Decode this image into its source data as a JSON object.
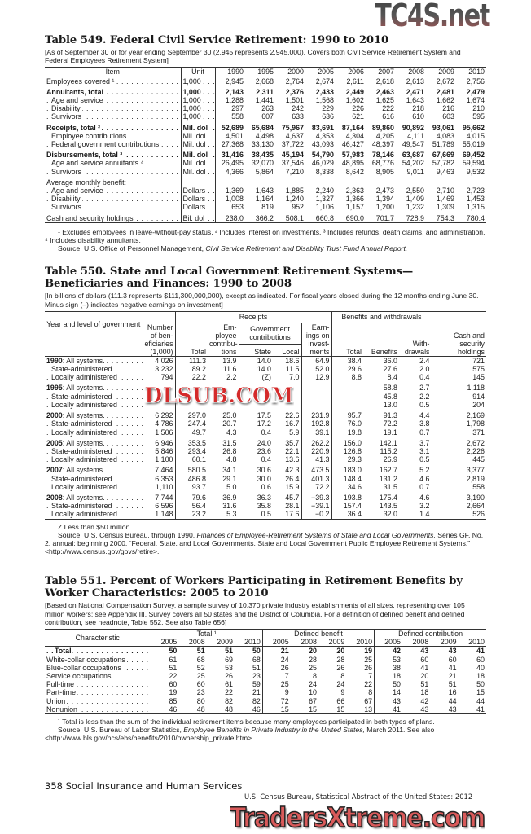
{
  "watermarks": {
    "top": "TC4S.net",
    "middle": "DLSUB.COM",
    "bottom": "TradersXtreme.com"
  },
  "t549": {
    "title": "Table 549. Federal Civil Service Retirement: 1990 to 2010",
    "headnote": "[As of September 30 or for year ending September 30 (2,945 represents 2,945,000). Covers both Civil Service Retirement System and Federal Employees Retirement System]",
    "headers": [
      "Item",
      "Unit",
      "1990",
      "1995",
      "2000",
      "2005",
      "2006",
      "2007",
      "2008",
      "2009",
      "2010"
    ],
    "groups": [
      [
        {
          "label": "Employees covered ¹",
          "unit": "1,000",
          "values": [
            "2,945",
            "2,668",
            "2,764",
            "2,674",
            "2,611",
            "2,618",
            "2,613",
            "2,672",
            "2,756"
          ]
        }
      ],
      [
        {
          "label": "Annuitants, total",
          "bold": true,
          "unit": "1,000",
          "values": [
            "2,143",
            "2,311",
            "2,376",
            "2,433",
            "2,449",
            "2,463",
            "2,471",
            "2,481",
            "2,479"
          ]
        },
        {
          "label": "Age and service",
          "level": 1,
          "unit": "1,000",
          "values": [
            "1,288",
            "1,441",
            "1,501",
            "1,568",
            "1,602",
            "1,625",
            "1,643",
            "1,662",
            "1,674"
          ]
        },
        {
          "label": "Disability",
          "level": 1,
          "unit": "1,000",
          "values": [
            "297",
            "263",
            "242",
            "229",
            "226",
            "222",
            "218",
            "216",
            "210"
          ]
        },
        {
          "label": "Survivors",
          "level": 1,
          "unit": "1,000",
          "values": [
            "558",
            "607",
            "633",
            "636",
            "621",
            "616",
            "610",
            "603",
            "595"
          ]
        }
      ],
      [
        {
          "label": "Receipts, total ²",
          "bold": true,
          "unit": "Mil. dol",
          "values": [
            "52,689",
            "65,684",
            "75,967",
            "83,691",
            "87,164",
            "89,860",
            "90,892",
            "93,061",
            "95,662"
          ]
        },
        {
          "label": "Employee contributions",
          "level": 1,
          "unit": "Mil. dol",
          "values": [
            "4,501",
            "4,498",
            "4,637",
            "4,353",
            "4,304",
            "4,205",
            "4,111",
            "4,083",
            "4,015"
          ]
        },
        {
          "label": "Federal government contributions",
          "level": 1,
          "unit": "Mil. dol",
          "values": [
            "27,368",
            "33,130",
            "37,722",
            "43,093",
            "46,427",
            "48,397",
            "49,547",
            "51,789",
            "55,019"
          ]
        }
      ],
      [
        {
          "label": "Disbursements, total ³",
          "bold": true,
          "unit": "Mil. dol",
          "values": [
            "31,416",
            "38,435",
            "45,194",
            "54,790",
            "57,983",
            "78,146",
            "63,687",
            "67,669",
            "69,452"
          ]
        },
        {
          "label": "Age and service annuitants ⁴",
          "level": 1,
          "unit": "Mil. dol",
          "values": [
            "26,495",
            "32,070",
            "37,546",
            "46,029",
            "48,895",
            "68,776",
            "54,202",
            "57,782",
            "59,594"
          ]
        },
        {
          "label": "Survivors",
          "level": 1,
          "unit": "Mil. dol",
          "values": [
            "4,366",
            "5,864",
            "7,210",
            "8,338",
            "8,642",
            "8,905",
            "9,011",
            "9,463",
            "9,532"
          ]
        }
      ],
      [
        {
          "label": "Average monthly benefit:",
          "noleader": true,
          "unit": "",
          "values": [
            "",
            "",
            "",
            "",
            "",
            "",
            "",
            "",
            ""
          ]
        },
        {
          "label": "Age and service",
          "level": 1,
          "unit": "Dollars",
          "values": [
            "1,369",
            "1,643",
            "1,885",
            "2,240",
            "2,363",
            "2,473",
            "2,550",
            "2,710",
            "2,723"
          ]
        },
        {
          "label": "Disability",
          "level": 1,
          "unit": "Dollars",
          "values": [
            "1,008",
            "1,164",
            "1,240",
            "1,327",
            "1,366",
            "1,394",
            "1,409",
            "1,469",
            "1,453"
          ]
        },
        {
          "label": "Survivors",
          "level": 1,
          "unit": "Dollars",
          "values": [
            "653",
            "819",
            "952",
            "1,106",
            "1,157",
            "1,200",
            "1,232",
            "1,309",
            "1,315"
          ]
        }
      ],
      [
        {
          "label": "Cash and security holdings",
          "unit": "Bil. dol",
          "values": [
            "238.0",
            "366.2",
            "508.1",
            "660.8",
            "690.0",
            "701.7",
            "728.9",
            "754.3",
            "780.4"
          ]
        }
      ]
    ],
    "footnote": "¹ Excludes employees in leave-without-pay status. ² Includes interest on investments. ³ Includes refunds, death claims, and administration. ⁴ Includes disability annuitants.",
    "source_prefix": "Source: U.S. Office of Personnel Management, ",
    "source_title": "Civil Service Retirement and Disability Trust Fund Annual Report."
  },
  "t550": {
    "title": "Table 550. State and Local Government Retirement Systems—Beneficiaries and Finances: 1990 to 2008",
    "headnote": "[In billions of dollars (111.3 represents $111,300,000,000), except as indicated. For fiscal years closed during the 12 months ending June 30. Minus sign (–) indicates negative earnings on investment]",
    "h": {
      "year": "Year and level of government",
      "number": "Number of ben- eficiaries (1,000)",
      "receipts": "Receipts",
      "benefits_group": "Benefits and withdrawals",
      "cash": "Cash and security holdings",
      "rtotal": "Total",
      "employee": "Em- ployee contribu- tions",
      "gov": "Government contributions",
      "earnings": "Earn- ings on invest- ments",
      "state": "State",
      "local": "Local",
      "btotal": "Total",
      "benefits": "Benefits",
      "withdrawals": "With- drawals"
    },
    "groups": [
      {
        "year": "1990",
        "rows": [
          {
            "label": ": All systems.",
            "values": [
              "4,026",
              "111.3",
              "13.9",
              "14.0",
              "18.6",
              "64.9",
              "38.4",
              "36.0",
              "2.4",
              "721"
            ]
          },
          {
            "label": "State-administered",
            "values": [
              "3,232",
              "89.2",
              "11.6",
              "14.0",
              "11.5",
              "52.0",
              "29.6",
              "27.6",
              "2.0",
              "575"
            ]
          },
          {
            "label": "Locally administered",
            "values": [
              "794",
              "22.2",
              "2.2",
              "(Z)",
              "7.0",
              "12.9",
              "8.8",
              "8.4",
              "0.4",
              "145"
            ]
          }
        ]
      },
      {
        "year": "1995",
        "rows": [
          {
            "label": ": All systems.",
            "values": [
              "",
              "",
              "",
              "",
              "",
              "",
              "",
              "58.8",
              "2.7",
              "1,118"
            ]
          },
          {
            "label": "State-administered",
            "values": [
              "",
              "",
              "",
              "",
              "",
              "",
              "",
              "45.8",
              "2.2",
              "914"
            ]
          },
          {
            "label": "Locally administered",
            "values": [
              "",
              "",
              "",
              "",
              "",
              "",
              "",
              "13.0",
              "0.5",
              "204"
            ]
          }
        ]
      },
      {
        "year": "2000",
        "rows": [
          {
            "label": ": All systems.",
            "values": [
              "6,292",
              "297.0",
              "25.0",
              "17.5",
              "22.6",
              "231.9",
              "95.7",
              "91.3",
              "4.4",
              "2,169"
            ]
          },
          {
            "label": "State-administered",
            "values": [
              "4,786",
              "247.4",
              "20.7",
              "17.2",
              "16.7",
              "192.8",
              "76.0",
              "72.2",
              "3.8",
              "1,798"
            ]
          },
          {
            "label": "Locally administered",
            "values": [
              "1,506",
              "49.7",
              "4.3",
              "0.4",
              "5.9",
              "39.1",
              "19.8",
              "19.1",
              "0.7",
              "371"
            ]
          }
        ]
      },
      {
        "year": "2005",
        "rows": [
          {
            "label": ": All systems.",
            "values": [
              "6,946",
              "353.5",
              "31.5",
              "24.0",
              "35.7",
              "262.2",
              "156.0",
              "142.1",
              "3.7",
              "2,672"
            ]
          },
          {
            "label": "State-administered",
            "values": [
              "5,846",
              "293.4",
              "26.8",
              "23.6",
              "22.1",
              "220.9",
              "126.8",
              "115.2",
              "3.1",
              "2,226"
            ]
          },
          {
            "label": "Locally administered",
            "values": [
              "1,100",
              "60.1",
              "4.8",
              "0.4",
              "13.6",
              "41.3",
              "29.3",
              "26.9",
              "0.5",
              "445"
            ]
          }
        ]
      },
      {
        "year": "2007",
        "rows": [
          {
            "label": ": All systems.",
            "values": [
              "7,464",
              "580.5",
              "34.1",
              "30.6",
              "42.3",
              "473.5",
              "183.0",
              "162.7",
              "5.2",
              "3,377"
            ]
          },
          {
            "label": "State-administered",
            "values": [
              "6,353",
              "486.8",
              "29.1",
              "30.0",
              "26.4",
              "401.3",
              "148.4",
              "131.2",
              "4.6",
              "2,819"
            ]
          },
          {
            "label": "Locally administered",
            "values": [
              "1,110",
              "93.7",
              "5.0",
              "0.6",
              "15.9",
              "72.2",
              "34.6",
              "31.5",
              "0.7",
              "558"
            ]
          }
        ]
      },
      {
        "year": "2008",
        "rows": [
          {
            "label": ": All systems.",
            "values": [
              "7,744",
              "79.6",
              "36.9",
              "36.3",
              "45.7",
              "−39.3",
              "193.8",
              "175.4",
              "4.6",
              "3,190"
            ]
          },
          {
            "label": "State-administered",
            "values": [
              "6,596",
              "56.4",
              "31.6",
              "35.8",
              "28.1",
              "−39.1",
              "157.4",
              "143.5",
              "3.2",
              "2,664"
            ]
          },
          {
            "label": "Locally administered",
            "values": [
              "1,148",
              "23.2",
              "5.3",
              "0.5",
              "17.6",
              "−0.2",
              "36.4",
              "32.0",
              "1.4",
              "526"
            ]
          }
        ]
      }
    ],
    "footnote": "Z Less than $50 million.",
    "source_prefix": "Source: U.S. Census Bureau, through 1990, ",
    "source_title": "Finances of Employee-Retirement Systems of State and Local Governments,",
    "source_suffix": " Series GF, No. 2, annual; beginning 2000, “Federal, State, and Local Governments, State and Local Government Public Employee Retirement Systems,” <http://www.census.gov/govs/retire>."
  },
  "t551": {
    "title": "Table 551. Percent of Workers Participating in Retirement Benefits by Worker Characteristics: 2005 to 2010",
    "headnote": "[Based on National Compensation Survey, a sample survey of 10,370 private industry establishments of all sizes, representing over 105 million workers; see Appendix III. Survey covers all 50 states and the District of Columbia. For a definition of defined benefit and defined contribution, see headnote, Table 552. See also Table 656]",
    "h": {
      "characteristic": "Characteristic",
      "total": "Total ¹",
      "db": "Defined benefit",
      "dc": "Defined contribution",
      "years": [
        "2005",
        "2008",
        "2009",
        "2010"
      ]
    },
    "rows": [
      {
        "label": "Total.",
        "bold": true,
        "values": [
          "50",
          "51",
          "51",
          "50",
          "21",
          "20",
          "20",
          "19",
          "42",
          "43",
          "43",
          "41"
        ]
      },
      {
        "label": "White-collar occupations",
        "values": [
          "61",
          "68",
          "69",
          "68",
          "24",
          "28",
          "28",
          "25",
          "53",
          "60",
          "60",
          "60"
        ]
      },
      {
        "label": "Blue-collar occupations",
        "values": [
          "51",
          "52",
          "53",
          "51",
          "26",
          "25",
          "26",
          "26",
          "38",
          "41",
          "41",
          "40"
        ]
      },
      {
        "label": "Service occupations",
        "values": [
          "22",
          "25",
          "26",
          "23",
          "7",
          "8",
          "8",
          "7",
          "18",
          "20",
          "21",
          "18"
        ]
      },
      {
        "label": "Full-time",
        "values": [
          "60",
          "60",
          "61",
          "59",
          "25",
          "24",
          "24",
          "22",
          "50",
          "51",
          "51",
          "50"
        ]
      },
      {
        "label": "Part-time",
        "values": [
          "19",
          "23",
          "22",
          "21",
          "9",
          "10",
          "9",
          "8",
          "14",
          "18",
          "16",
          "15"
        ]
      },
      {
        "label": "Union",
        "values": [
          "85",
          "80",
          "82",
          "82",
          "72",
          "67",
          "66",
          "67",
          "43",
          "42",
          "44",
          "44"
        ]
      },
      {
        "label": "Nonunion",
        "values": [
          "46",
          "48",
          "48",
          "46",
          "15",
          "15",
          "15",
          "13",
          "41",
          "43",
          "43",
          "41"
        ]
      }
    ],
    "footnote": "¹ Total is less than the sum of the individual retirement items because many employees participated in both types of plans.",
    "source_prefix": "Source: U.S. Bureau of Labor Statistics, ",
    "source_title": "Employee Benefits in Private Industry in the United States,",
    "source_suffix": " March 2011. See also <http://www.bls.gov/ncs/ebs/benefits/2010/ownership_private.htm>."
  },
  "footer": {
    "page": "358  Social Insurance and Human Services",
    "source": "U.S. Census Bureau, Statistical Abstract of the United States: 2012"
  }
}
